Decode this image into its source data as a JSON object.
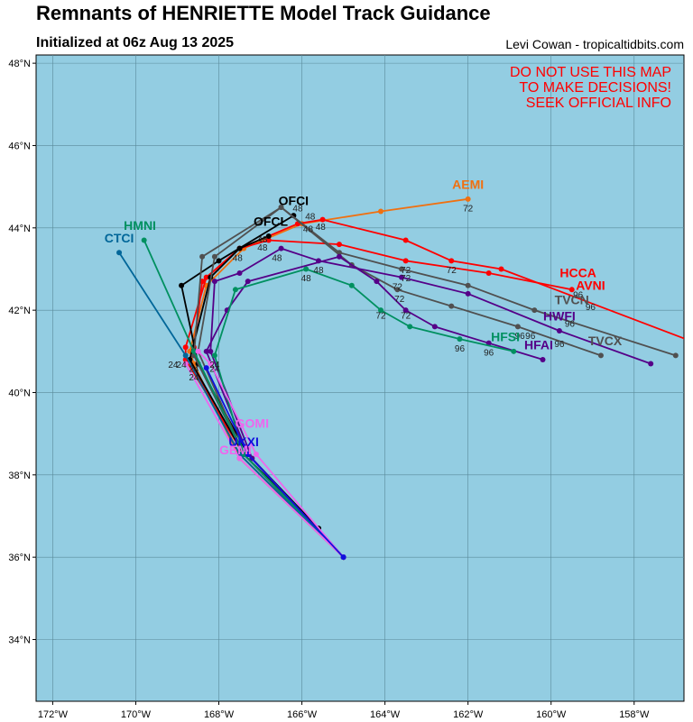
{
  "header": {
    "title": "Remnants of HENRIETTE Model Track Guidance",
    "subtitle": "Initialized at 06z Aug 13 2025",
    "credit": "Levi Cowan - tropicaltidbits.com"
  },
  "warning": [
    "DO NOT USE THIS MAP",
    "TO MAKE DECISIONS!",
    "SEEK OFFICIAL INFO"
  ],
  "colors": {
    "ocean": "#93cde2",
    "grid": "#5a8a9a"
  },
  "axes": {
    "lon_ticks": [
      -172,
      -170,
      -168,
      -166,
      -164,
      -162,
      -160,
      -158
    ],
    "lon_labels": [
      "172°W",
      "170°W",
      "168°W",
      "166°W",
      "164°W",
      "162°W",
      "160°W",
      "158°W"
    ],
    "lat_ticks": [
      34,
      36,
      38,
      40,
      42,
      44,
      46,
      48
    ],
    "lat_labels": [
      "34°N",
      "36°N",
      "38°N",
      "40°N",
      "42°N",
      "44°N",
      "46°N",
      "48°N"
    ]
  },
  "models": [
    {
      "name": "AEMI",
      "color": "#f07010",
      "points": [
        [
          -165,
          36
        ],
        [
          -167.5,
          38.4
        ],
        [
          -168.6,
          40.7
        ],
        [
          -168.7,
          41.0
        ],
        [
          -168.3,
          42.6
        ],
        [
          -167.4,
          43.5
        ],
        [
          -166,
          44.1
        ],
        [
          -164.1,
          44.4
        ],
        [
          -162,
          44.7
        ]
      ]
    },
    {
      "name": "HCCA",
      "color": "#ff0000",
      "points": [
        [
          -165,
          36
        ],
        [
          -167.4,
          38.5
        ],
        [
          -168.8,
          40.8
        ],
        [
          -168.8,
          41.1
        ],
        [
          -168.3,
          42.8
        ],
        [
          -167.5,
          43.5
        ],
        [
          -166.8,
          43.7
        ],
        [
          -165.1,
          43.6
        ],
        [
          -163.5,
          43.2
        ],
        [
          -161.5,
          42.9
        ],
        [
          -159.5,
          42.5
        ]
      ]
    },
    {
      "name": "AVNI",
      "color": "#ff0000",
      "points": [
        [
          -165,
          36
        ],
        [
          -167.5,
          38.5
        ],
        [
          -168.7,
          40.8
        ],
        [
          -168.6,
          41.1
        ],
        [
          -168.4,
          42.7
        ],
        [
          -167.5,
          43.5
        ],
        [
          -166.1,
          44.1
        ],
        [
          -165.5,
          44.2
        ],
        [
          -163.5,
          43.7
        ],
        [
          -162.4,
          43.2
        ],
        [
          -161.2,
          43.0
        ],
        [
          -156.5,
          41.2
        ]
      ]
    },
    {
      "name": "OFCI",
      "color": "#000000",
      "points": [
        [
          -165,
          36
        ],
        [
          -165.6,
          36.7
        ],
        [
          -167.3,
          38.5
        ],
        [
          -168.5,
          40.7
        ],
        [
          -168.9,
          42.6
        ],
        [
          -168,
          43.2
        ],
        [
          -166.2,
          44.3
        ]
      ]
    },
    {
      "name": "OFCL",
      "color": "#000000",
      "points": [
        [
          -165,
          36
        ],
        [
          -165.6,
          36.7
        ],
        [
          -167.4,
          38.5
        ],
        [
          -168.7,
          40.8
        ],
        [
          -168.2,
          42.8
        ],
        [
          -167.5,
          43.5
        ],
        [
          -166.8,
          43.8
        ]
      ]
    },
    {
      "name": "TVCN",
      "color": "#505050",
      "points": [
        [
          -165,
          36
        ],
        [
          -167.4,
          38.5
        ],
        [
          -168.6,
          40.9
        ],
        [
          -168.4,
          43.3
        ],
        [
          -166.5,
          44.5
        ],
        [
          -165.1,
          43.4
        ],
        [
          -163.6,
          43.0
        ],
        [
          -162,
          42.6
        ],
        [
          -160.4,
          42.0
        ],
        [
          -157,
          40.9
        ]
      ]
    },
    {
      "name": "TVCX",
      "color": "#505050",
      "points": [
        [
          -165,
          36
        ],
        [
          -167.4,
          38.5
        ],
        [
          -168.5,
          41.0
        ],
        [
          -168.1,
          43.3
        ],
        [
          -166.5,
          44.5
        ],
        [
          -164.8,
          43.1
        ],
        [
          -163.7,
          42.5
        ],
        [
          -162.4,
          42.1
        ],
        [
          -160.8,
          41.6
        ],
        [
          -158.8,
          40.9
        ]
      ]
    },
    {
      "name": "HWFI",
      "color": "#550088",
      "points": [
        [
          -165,
          36
        ],
        [
          -167.2,
          38.4
        ],
        [
          -168.2,
          41.0
        ],
        [
          -168.1,
          42.7
        ],
        [
          -167.5,
          42.9
        ],
        [
          -166.5,
          43.5
        ],
        [
          -165.6,
          43.2
        ],
        [
          -163.6,
          42.8
        ],
        [
          -162,
          42.4
        ],
        [
          -159.8,
          41.5
        ],
        [
          -157.6,
          40.7
        ]
      ]
    },
    {
      "name": "HFAI",
      "color": "#550088",
      "points": [
        [
          -165,
          36
        ],
        [
          -167.3,
          38.5
        ],
        [
          -168.3,
          41.0
        ],
        [
          -167.8,
          42.0
        ],
        [
          -167.3,
          42.7
        ],
        [
          -165.1,
          43.3
        ],
        [
          -164.2,
          42.7
        ],
        [
          -163.5,
          42.0
        ],
        [
          -162.8,
          41.6
        ],
        [
          -161.5,
          41.2
        ],
        [
          -160.2,
          40.8
        ]
      ]
    },
    {
      "name": "HFSI",
      "color": "#009060",
      "points": [
        [
          -165,
          36
        ],
        [
          -167.4,
          38.5
        ],
        [
          -168.1,
          40.9
        ],
        [
          -167.6,
          42.5
        ],
        [
          -165.9,
          43.0
        ],
        [
          -164.8,
          42.6
        ],
        [
          -164.1,
          42.0
        ],
        [
          -163.4,
          41.6
        ],
        [
          -162.2,
          41.3
        ],
        [
          -160.9,
          41.0
        ]
      ]
    },
    {
      "name": "HMNI",
      "color": "#009060",
      "points": [
        [
          -165,
          36
        ],
        [
          -167.4,
          38.5
        ],
        [
          -168.6,
          41.0
        ],
        [
          -169.8,
          43.7
        ]
      ]
    },
    {
      "name": "CTCI",
      "color": "#006699",
      "points": [
        [
          -165,
          36
        ],
        [
          -167.5,
          38.5
        ],
        [
          -168.8,
          40.9
        ],
        [
          -170.4,
          43.4
        ]
      ]
    },
    {
      "name": "GOMI",
      "color": "#ee66ee",
      "points": [
        [
          -165,
          36
        ],
        [
          -167.1,
          38.5
        ],
        [
          -168.2,
          40.7
        ],
        [
          -168.5,
          41.0
        ]
      ]
    },
    {
      "name": "GEMI",
      "color": "#ee66ee",
      "points": [
        [
          -165,
          36
        ],
        [
          -167.5,
          38.4
        ],
        [
          -168.8,
          40.7
        ]
      ]
    },
    {
      "name": "UKXI",
      "color": "#1010dd",
      "points": [
        [
          -165,
          36
        ],
        [
          -167.3,
          38.5
        ],
        [
          -168.3,
          40.6
        ]
      ]
    }
  ],
  "model_labels": [
    {
      "text": "AEMI",
      "color": "#f07010",
      "lon": -162,
      "lat": 44.95
    },
    {
      "text": "OFCI",
      "color": "#000000",
      "lon": -166.2,
      "lat": 44.55
    },
    {
      "text": "OFCL",
      "color": "#000000",
      "lon": -166.75,
      "lat": 44.05
    },
    {
      "text": "HMNI",
      "color": "#009060",
      "lon": -169.9,
      "lat": 43.95
    },
    {
      "text": "CTCI",
      "color": "#006699",
      "lon": -170.4,
      "lat": 43.65
    },
    {
      "text": "HCCA",
      "color": "#ff0000",
      "lon": -159.35,
      "lat": 42.8
    },
    {
      "text": "AVNI",
      "color": "#ff0000",
      "lon": -159.05,
      "lat": 42.5
    },
    {
      "text": "TVCN",
      "color": "#505050",
      "lon": -159.5,
      "lat": 42.15
    },
    {
      "text": "HWFI",
      "color": "#550088",
      "lon": -159.8,
      "lat": 41.75
    },
    {
      "text": "HFSI",
      "color": "#009060",
      "lon": -161.1,
      "lat": 41.25
    },
    {
      "text": "TVCX",
      "color": "#505050",
      "lon": -158.7,
      "lat": 41.15
    },
    {
      "text": "HFAI",
      "color": "#550088",
      "lon": -160.3,
      "lat": 41.05
    },
    {
      "text": "GOMI",
      "color": "#ee66ee",
      "lon": -167.2,
      "lat": 39.15
    },
    {
      "text": "UKXI",
      "color": "#1010dd",
      "lon": -167.4,
      "lat": 38.7
    },
    {
      "text": "GEMI",
      "color": "#ee66ee",
      "lon": -167.6,
      "lat": 38.5
    }
  ],
  "hour_labels": [
    {
      "text": "24",
      "lon": -169.1,
      "lat": 40.6
    },
    {
      "text": "24",
      "lon": -168.9,
      "lat": 40.6
    },
    {
      "text": "24",
      "lon": -168.6,
      "lat": 40.5
    },
    {
      "text": "24",
      "lon": -168.6,
      "lat": 40.3
    },
    {
      "text": "24",
      "lon": -168.1,
      "lat": 40.6
    },
    {
      "text": "24",
      "lon": -168.1,
      "lat": 40.5
    },
    {
      "text": "48",
      "lon": -166.1,
      "lat": 44.4
    },
    {
      "text": "48",
      "lon": -165.8,
      "lat": 44.2
    },
    {
      "text": "48",
      "lon": -165.85,
      "lat": 43.9
    },
    {
      "text": "48",
      "lon": -165.55,
      "lat": 43.95
    },
    {
      "text": "48",
      "lon": -166.95,
      "lat": 43.65
    },
    {
      "text": "48",
      "lon": -166.95,
      "lat": 43.45
    },
    {
      "text": "48",
      "lon": -167.55,
      "lat": 43.2
    },
    {
      "text": "48",
      "lon": -166.6,
      "lat": 43.2
    },
    {
      "text": "48",
      "lon": -165.6,
      "lat": 42.9
    },
    {
      "text": "48",
      "lon": -165.9,
      "lat": 42.7
    },
    {
      "text": "72",
      "lon": -162,
      "lat": 44.4
    },
    {
      "text": "72",
      "lon": -163.5,
      "lat": 42.9
    },
    {
      "text": "72",
      "lon": -163.5,
      "lat": 42.7
    },
    {
      "text": "72",
      "lon": -163.7,
      "lat": 42.5
    },
    {
      "text": "72",
      "lon": -163.65,
      "lat": 42.2
    },
    {
      "text": "72",
      "lon": -164.1,
      "lat": 41.8
    },
    {
      "text": "72",
      "lon": -163.5,
      "lat": 41.8
    },
    {
      "text": "72",
      "lon": -162.4,
      "lat": 42.9
    },
    {
      "text": "96",
      "lon": -159.35,
      "lat": 42.3
    },
    {
      "text": "96",
      "lon": -159.05,
      "lat": 42.0
    },
    {
      "text": "96",
      "lon": -160.75,
      "lat": 41.3
    },
    {
      "text": "96",
      "lon": -160.5,
      "lat": 41.3
    },
    {
      "text": "96",
      "lon": -159.55,
      "lat": 41.6
    },
    {
      "text": "96",
      "lon": -159.8,
      "lat": 41.1
    },
    {
      "text": "96",
      "lon": -162.2,
      "lat": 41.0
    },
    {
      "text": "96",
      "lon": -161.5,
      "lat": 40.9
    }
  ]
}
